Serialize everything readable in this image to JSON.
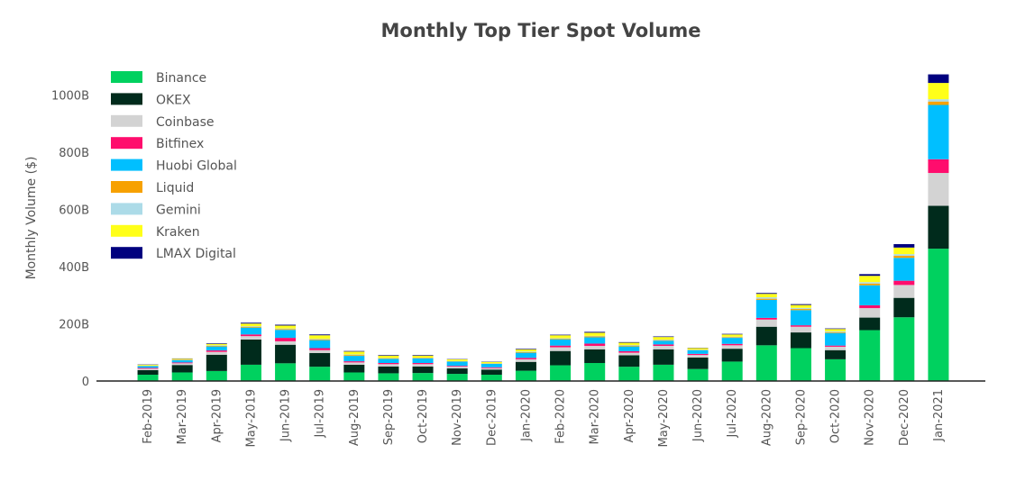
{
  "chart_data": {
    "type": "bar",
    "stacked": true,
    "title": "Monthly Top Tier Spot Volume",
    "xlabel": "",
    "ylabel": "Monthly Volume ($)",
    "ylim": [
      0,
      1100
    ],
    "yticks": [
      {
        "value": 0,
        "label": "0"
      },
      {
        "value": 200,
        "label": "200B"
      },
      {
        "value": 400,
        "label": "400B"
      },
      {
        "value": 600,
        "label": "600B"
      },
      {
        "value": 800,
        "label": "800B"
      },
      {
        "value": 1000,
        "label": "1000B"
      }
    ],
    "grid": false,
    "legend_position": "top-left",
    "categories": [
      "Feb-2019",
      "Mar-2019",
      "Apr-2019",
      "May-2019",
      "Jun-2019",
      "Jul-2019",
      "Aug-2019",
      "Sep-2019",
      "Oct-2019",
      "Nov-2019",
      "Dec-2019",
      "Jan-2020",
      "Feb-2020",
      "Mar-2020",
      "Apr-2020",
      "May-2020",
      "Jun-2020",
      "Jul-2020",
      "Aug-2020",
      "Sep-2020",
      "Oct-2020",
      "Nov-2020",
      "Dec-2020",
      "Jan-2021"
    ],
    "series": [
      {
        "name": "Binance",
        "color": "#00d15f",
        "values": [
          22,
          30,
          35,
          57,
          62,
          50,
          30,
          27,
          28,
          25,
          22,
          36,
          55,
          63,
          50,
          57,
          42,
          68,
          125,
          115,
          76,
          178,
          223,
          463
        ]
      },
      {
        "name": "OKEX",
        "color": "#002b1c",
        "values": [
          16,
          26,
          57,
          88,
          65,
          48,
          27,
          24,
          23,
          19,
          18,
          31,
          50,
          48,
          40,
          54,
          40,
          45,
          65,
          55,
          32,
          44,
          68,
          150
        ]
      },
      {
        "name": "Coinbase",
        "color": "#d3d3d3",
        "values": [
          5,
          6,
          10,
          12,
          12,
          10,
          8,
          8,
          8,
          6,
          5,
          9,
          13,
          12,
          9,
          12,
          9,
          12,
          25,
          20,
          12,
          33,
          45,
          115
        ]
      },
      {
        "name": "Bitfinex",
        "color": "#ff0d6d",
        "values": [
          3,
          3,
          5,
          6,
          12,
          7,
          4,
          4,
          4,
          3,
          3,
          5,
          6,
          8,
          5,
          5,
          4,
          5,
          6,
          5,
          4,
          10,
          15,
          48
        ]
      },
      {
        "name": "Huobi Global",
        "color": "#00bfff",
        "values": [
          6,
          8,
          14,
          24,
          28,
          28,
          19,
          15,
          16,
          15,
          12,
          18,
          22,
          22,
          17,
          13,
          13,
          21,
          63,
          53,
          44,
          70,
          80,
          190
        ]
      },
      {
        "name": "Liquid",
        "color": "#f7a100",
        "values": [
          1,
          1,
          2,
          3,
          3,
          3,
          3,
          2,
          2,
          1,
          1,
          2,
          2,
          3,
          3,
          2,
          1,
          2,
          4,
          4,
          3,
          6,
          7,
          12
        ]
      },
      {
        "name": "Gemini",
        "color": "#acdbe8",
        "values": [
          1,
          1,
          2,
          2,
          2,
          2,
          2,
          1,
          1,
          1,
          1,
          2,
          2,
          2,
          2,
          2,
          1,
          2,
          5,
          4,
          3,
          5,
          6,
          8
        ]
      },
      {
        "name": "Kraken",
        "color": "#ffff19",
        "values": [
          3,
          3,
          5,
          9,
          10,
          12,
          10,
          8,
          7,
          6,
          5,
          8,
          10,
          11,
          8,
          9,
          5,
          8,
          12,
          10,
          8,
          22,
          23,
          57
        ]
      },
      {
        "name": "LMAX Digital",
        "color": "#00007f",
        "values": [
          1,
          1,
          2,
          3,
          3,
          3,
          2,
          2,
          2,
          1,
          1,
          2,
          2,
          3,
          2,
          2,
          1,
          2,
          3,
          3,
          2,
          6,
          12,
          30
        ]
      }
    ]
  }
}
